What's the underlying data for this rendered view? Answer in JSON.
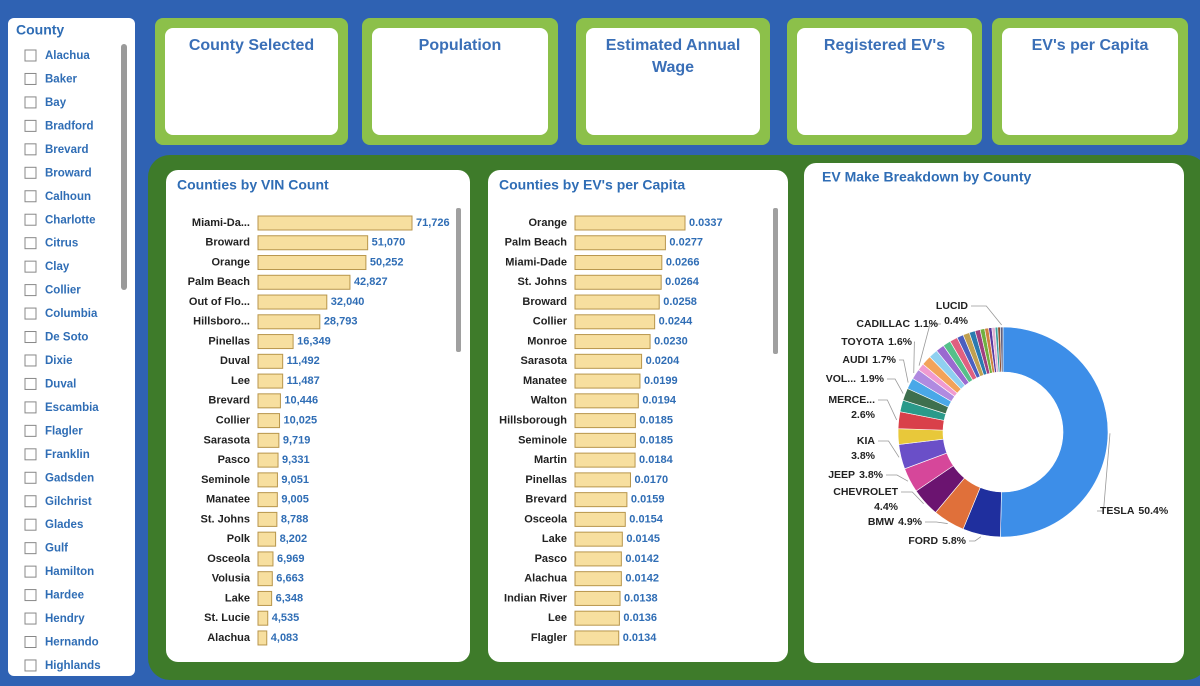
{
  "slicer": {
    "title": "County",
    "items": [
      "Alachua",
      "Baker",
      "Bay",
      "Bradford",
      "Brevard",
      "Broward",
      "Calhoun",
      "Charlotte",
      "Citrus",
      "Clay",
      "Collier",
      "Columbia",
      "De Soto",
      "Dixie",
      "Duval",
      "Escambia",
      "Flagler",
      "Franklin",
      "Gadsden",
      "Gilchrist",
      "Glades",
      "Gulf",
      "Hamilton",
      "Hardee",
      "Hendry",
      "Hernando",
      "Highlands"
    ]
  },
  "cards": [
    "County Selected",
    "Population",
    "Estimated Annual Wage",
    "Registered EV's",
    "EV's per Capita"
  ],
  "chart_data": [
    {
      "type": "bar",
      "title": "Counties by VIN Count",
      "color": "#f7df9f",
      "categories": [
        "Miami-Da...",
        "Broward",
        "Orange",
        "Palm Beach",
        "Out of Flo...",
        "Hillsboro...",
        "Pinellas",
        "Duval",
        "Lee",
        "Brevard",
        "Collier",
        "Sarasota",
        "Pasco",
        "Seminole",
        "Manatee",
        "St. Johns",
        "Polk",
        "Osceola",
        "Volusia",
        "Lake",
        "St. Lucie",
        "Alachua"
      ],
      "values": [
        71726,
        51070,
        50252,
        42827,
        32040,
        28793,
        16349,
        11492,
        11487,
        10446,
        10025,
        9719,
        9331,
        9051,
        9005,
        8788,
        8202,
        6969,
        6663,
        6348,
        4535,
        4083
      ],
      "value_labels": [
        "71,726",
        "51,070",
        "50,252",
        "42,827",
        "32,040",
        "28,793",
        "16,349",
        "11,492",
        "11,487",
        "10,446",
        "10,025",
        "9,719",
        "9,331",
        "9,051",
        "9,005",
        "8,788",
        "8,202",
        "6,969",
        "6,663",
        "6,348",
        "4,535",
        "4,083"
      ]
    },
    {
      "type": "bar",
      "title": "Counties by EV's per Capita",
      "color": "#f7df9f",
      "categories": [
        "Orange",
        "Palm Beach",
        "Miami-Dade",
        "St. Johns",
        "Broward",
        "Collier",
        "Monroe",
        "Sarasota",
        "Manatee",
        "Walton",
        "Hillsborough",
        "Seminole",
        "Martin",
        "Pinellas",
        "Brevard",
        "Osceola",
        "Lake",
        "Pasco",
        "Alachua",
        "Indian River",
        "Lee",
        "Flagler"
      ],
      "values": [
        0.0337,
        0.0277,
        0.0266,
        0.0264,
        0.0258,
        0.0244,
        0.023,
        0.0204,
        0.0199,
        0.0194,
        0.0185,
        0.0185,
        0.0184,
        0.017,
        0.0159,
        0.0154,
        0.0145,
        0.0142,
        0.0142,
        0.0138,
        0.0136,
        0.0134
      ],
      "value_labels": [
        "0.0337",
        "0.0277",
        "0.0266",
        "0.0264",
        "0.0258",
        "0.0244",
        "0.0230",
        "0.0204",
        "0.0199",
        "0.0194",
        "0.0185",
        "0.0185",
        "0.0184",
        "0.0170",
        "0.0159",
        "0.0154",
        "0.0145",
        "0.0142",
        "0.0142",
        "0.0138",
        "0.0136",
        "0.0134"
      ]
    },
    {
      "type": "pie",
      "title": "EV Make Breakdown by County",
      "donut": true,
      "categories": [
        "TESLA",
        "FORD",
        "BMW",
        "CHEVROLET",
        "JEEP",
        "KIA",
        null,
        "MERCE...",
        null,
        "VOL...",
        "AUDI",
        "TOYOTA",
        "CADILLAC",
        null,
        null,
        null,
        null,
        null,
        null,
        null,
        null,
        null,
        null,
        null,
        null,
        null,
        null,
        null,
        "LUCID"
      ],
      "values": [
        50.4,
        5.8,
        4.9,
        4.4,
        3.8,
        3.8,
        2.4,
        2.6,
        1.8,
        1.9,
        1.7,
        1.6,
        1.1,
        1.5,
        1.4,
        1.3,
        1.2,
        1.2,
        1.0,
        1.0,
        0.9,
        0.8,
        0.7,
        0.6,
        0.5,
        0.5,
        0.4,
        0.4,
        0.4
      ],
      "value_labels": [
        "50.4%",
        "5.8%",
        "4.9%",
        "4.4%",
        "3.8%",
        "3.8%",
        null,
        "2.6%",
        null,
        "1.9%",
        "1.7%",
        "1.6%",
        "1.1%",
        null,
        null,
        null,
        null,
        null,
        null,
        null,
        null,
        null,
        null,
        null,
        null,
        null,
        null,
        null,
        "0.4%"
      ],
      "colors": [
        "#3d8ee8",
        "#1f2f9e",
        "#e0703a",
        "#6b1470",
        "#d6479a",
        "#6a4fc8",
        "#e8c83a",
        "#d9404a",
        "#2a9a8a",
        "#3e6f4e",
        "#4aa8e8",
        "#b08ae0",
        "#f09ad0",
        "#f2a35a",
        "#8fd0f0",
        "#9a6ad0",
        "#55c08a",
        "#e06080",
        "#4a5fc0",
        "#c0a050",
        "#2a7ab0",
        "#a04080",
        "#70b040",
        "#d08040",
        "#5a3aa0",
        "#e0b0d0",
        "#3aa0a0",
        "#905030",
        "#606080"
      ]
    }
  ]
}
